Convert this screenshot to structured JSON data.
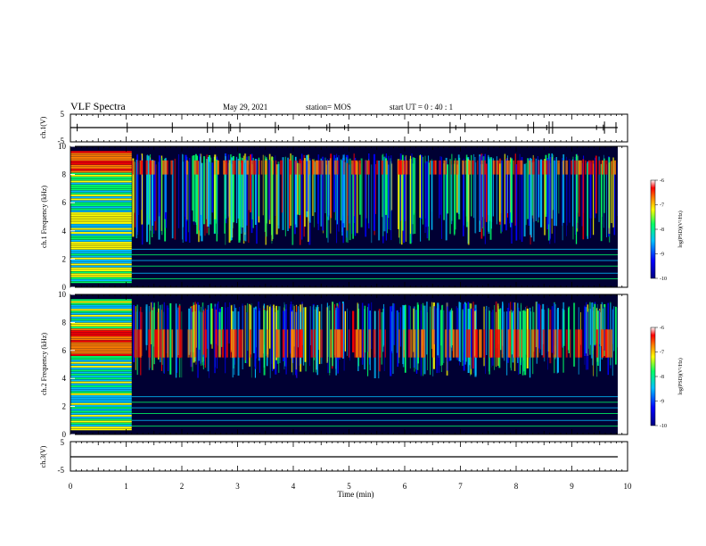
{
  "header": {
    "title": "VLF Spectra",
    "date": "May 29, 2021",
    "station": "station= MOS",
    "start": "start  UT =   0 : 40 : 1"
  },
  "colors": {
    "background": "#000033",
    "colormap": [
      "#00007f",
      "#0000ff",
      "#00bfff",
      "#00ff66",
      "#ffff00",
      "#ff7f00",
      "#ff0000",
      "#ffffff"
    ]
  },
  "chart_data": [
    {
      "type": "line",
      "panel": "ch1_voltage",
      "ylabel": "ch.1(V)",
      "ylim": [
        -5,
        5
      ],
      "yticks": [
        "5",
        "-5"
      ],
      "x": [
        0,
        10
      ],
      "y": [
        0,
        0
      ]
    },
    {
      "type": "heatmap",
      "panel": "ch1_spectrogram",
      "ylabel": "ch.1  Frequency (kHz)",
      "xlim": [
        0,
        10
      ],
      "ylim": [
        0,
        10
      ],
      "yticks": [
        "0",
        "2",
        "4",
        "6",
        "8",
        "10"
      ],
      "colorbar": {
        "label": "log(PSD)(V²/Hz)",
        "range": [
          -10,
          -6
        ],
        "ticks": [
          "-6",
          "-7",
          "-8",
          "-9",
          "-10"
        ]
      },
      "features": {
        "saturated_segment_min": [
          0,
          1.1
        ],
        "active_band_khz": [
          3,
          9.5
        ],
        "quiet_band_khz": [
          0.5,
          3
        ],
        "reddest_band_khz": [
          8,
          9
        ]
      }
    },
    {
      "type": "heatmap",
      "panel": "ch2_spectrogram",
      "ylabel": "ch.2  Frequency (kHz)",
      "xlim": [
        0,
        10
      ],
      "ylim": [
        0,
        10
      ],
      "yticks": [
        "0",
        "2",
        "4",
        "6",
        "8",
        "10"
      ],
      "colorbar": {
        "label": "log(PSD)(V²/Hz)",
        "range": [
          -10,
          -6
        ],
        "ticks": [
          "-6",
          "-7",
          "-8",
          "-9",
          "-10"
        ]
      },
      "features": {
        "saturated_segment_min": [
          0,
          1.1
        ],
        "active_band_khz": [
          4,
          9.5
        ],
        "quiet_band_khz": [
          0.5,
          3
        ],
        "reddest_band_khz": [
          5.5,
          7.5
        ]
      }
    },
    {
      "type": "line",
      "panel": "ch3_voltage",
      "ylabel": "ch.3(V)",
      "ylim": [
        -5,
        5
      ],
      "yticks": [
        "5",
        "-5"
      ],
      "x": [
        0,
        10
      ],
      "y": [
        0,
        0
      ]
    }
  ],
  "xaxis": {
    "label": "Time  (min)",
    "range": [
      0,
      10
    ],
    "ticks": [
      "0",
      "1",
      "2",
      "3",
      "4",
      "5",
      "6",
      "7",
      "8",
      "9",
      "10"
    ]
  }
}
